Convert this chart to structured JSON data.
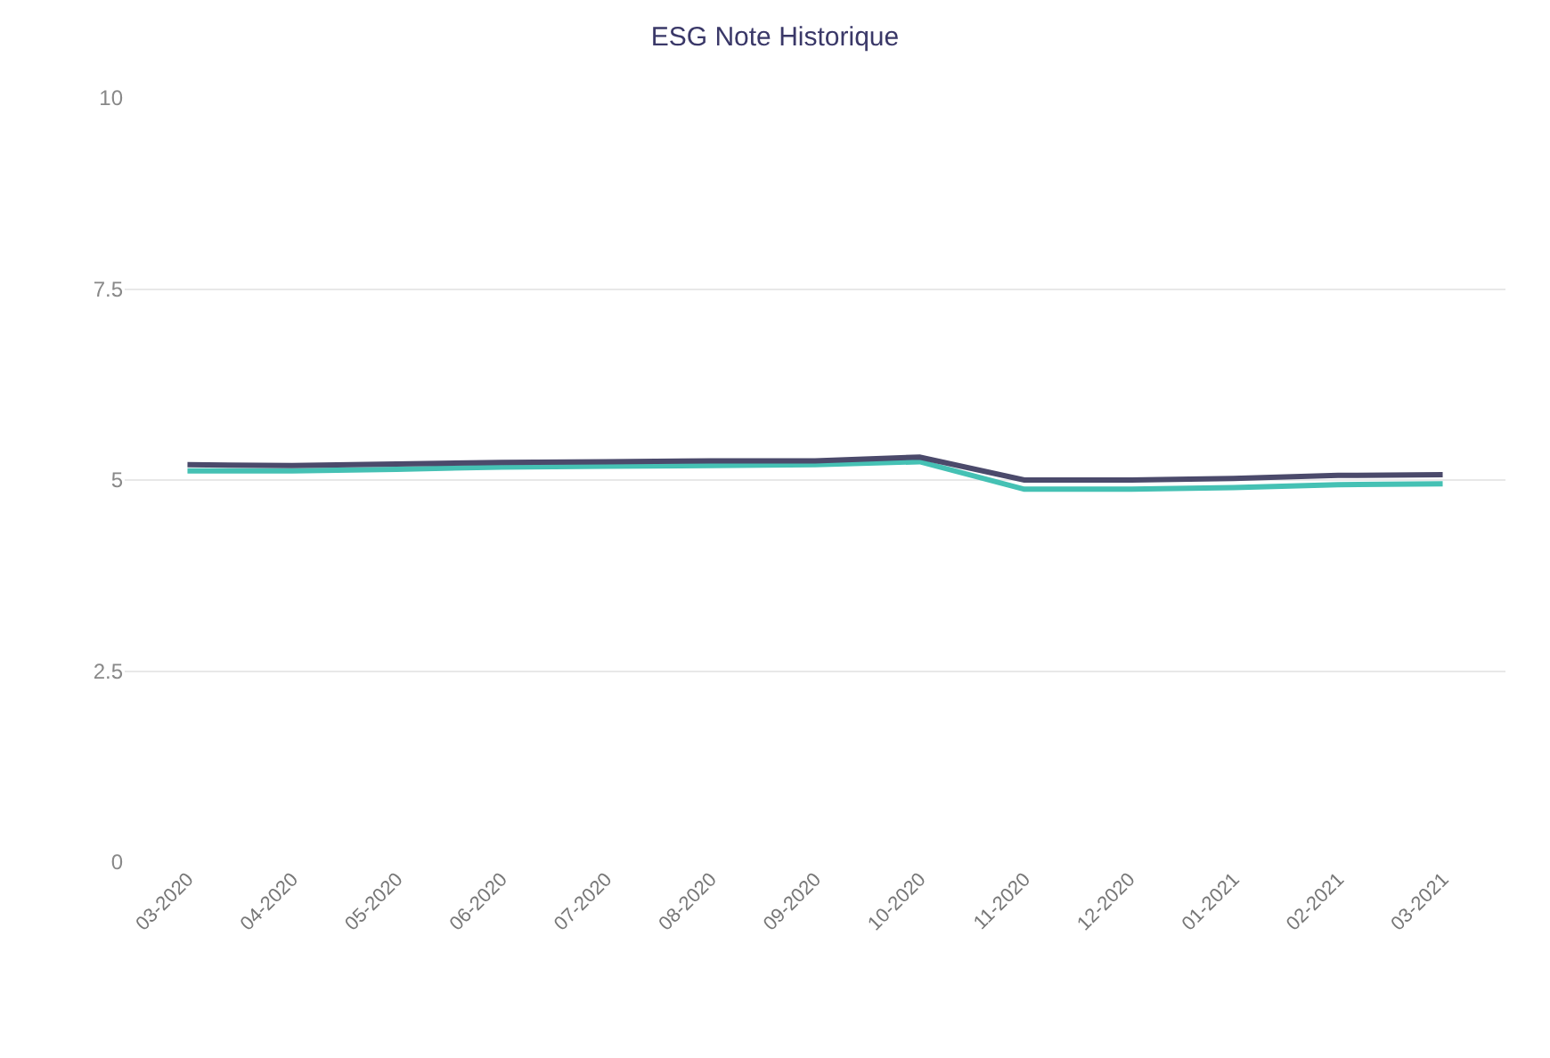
{
  "chart_data": {
    "type": "line",
    "title": "ESG Note Historique",
    "categories": [
      "03-2020",
      "04-2020",
      "05-2020",
      "06-2020",
      "07-2020",
      "08-2020",
      "09-2020",
      "10-2020",
      "11-2020",
      "12-2020",
      "01-2021",
      "02-2021",
      "03-2021"
    ],
    "series": [
      {
        "color": "#45c1b4",
        "values": [
          5.12,
          5.12,
          5.14,
          5.17,
          5.18,
          5.19,
          5.2,
          5.24,
          4.88,
          4.88,
          4.9,
          4.94,
          4.95
        ]
      },
      {
        "color": "#4b4a6b",
        "values": [
          5.2,
          5.19,
          5.21,
          5.23,
          5.24,
          5.25,
          5.25,
          5.3,
          5.0,
          5.0,
          5.02,
          5.06,
          5.07
        ]
      }
    ],
    "ylim": [
      0,
      10
    ],
    "yticks": [
      0,
      {
        "value": 2.5,
        "label": "2.5"
      },
      5,
      {
        "value": 7.5,
        "label": "7.5"
      },
      10
    ],
    "grid": "y",
    "marker": "none",
    "line_style": "solid"
  }
}
